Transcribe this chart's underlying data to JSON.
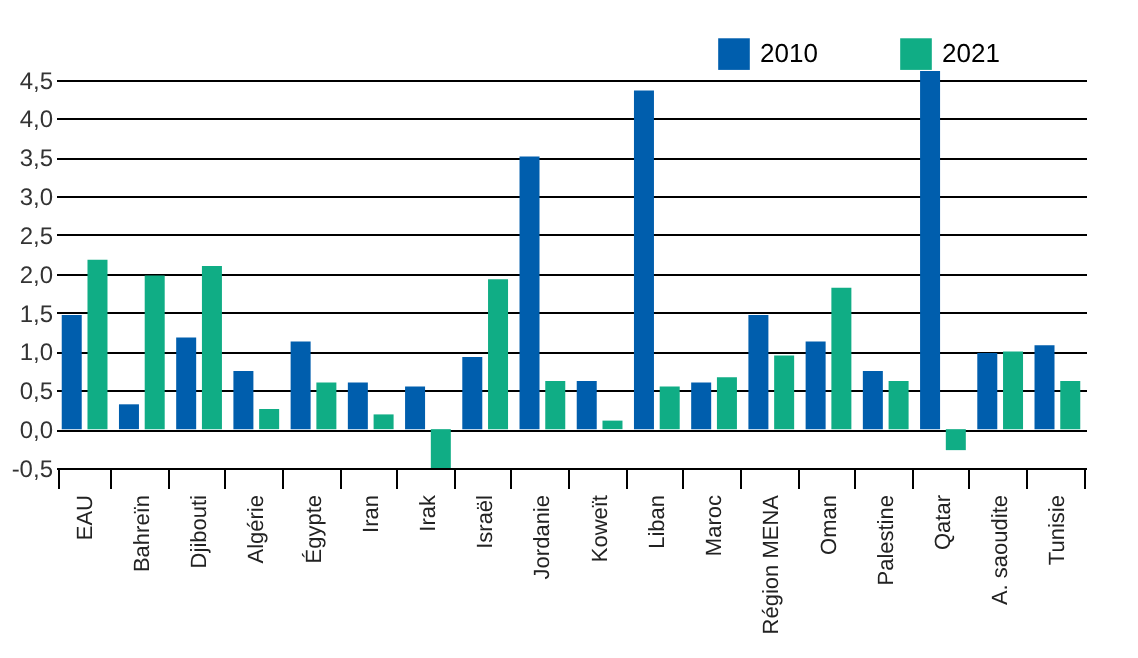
{
  "chart_data": {
    "type": "bar",
    "categories": [
      "EAU",
      "Bahreïn",
      "Djibouti",
      "Algérie",
      "Égypte",
      "Iran",
      "Irak",
      "Israël",
      "Jordanie",
      "Koweït",
      "Liban",
      "Maroc",
      "Région MENA",
      "Oman",
      "Palestine",
      "Qatar",
      "A. saoudite",
      "Tunisie"
    ],
    "series": [
      {
        "name": "2010",
        "color": "#005ead",
        "values": [
          1.47,
          0.32,
          1.18,
          0.75,
          1.13,
          0.6,
          0.55,
          0.93,
          3.51,
          0.62,
          4.36,
          0.6,
          1.47,
          1.13,
          0.75,
          4.61,
          0.98,
          1.08
        ]
      },
      {
        "name": "2021",
        "color": "#10ad85",
        "values": [
          2.18,
          1.98,
          2.1,
          0.26,
          0.6,
          0.19,
          -0.5,
          1.93,
          0.62,
          0.11,
          0.55,
          0.67,
          0.95,
          1.82,
          0.62,
          -0.27,
          1.0,
          0.62
        ]
      }
    ],
    "ylim": [
      -0.5,
      4.65
    ],
    "yticks": [
      {
        "value": -0.5,
        "label": "-0,5"
      },
      {
        "value": 0,
        "label": "0,0"
      },
      {
        "value": 0.5,
        "label": "0,5"
      },
      {
        "value": 1,
        "label": "1,0"
      },
      {
        "value": 1.5,
        "label": "1,5"
      },
      {
        "value": 2,
        "label": "2,0"
      },
      {
        "value": 2.5,
        "label": "2,5"
      },
      {
        "value": 3,
        "label": "3,0"
      },
      {
        "value": 3.5,
        "label": "3,5"
      },
      {
        "value": 4,
        "label": "4,0"
      },
      {
        "value": 4.5,
        "label": "4,5"
      }
    ],
    "grid": "y",
    "legend": "top right"
  }
}
